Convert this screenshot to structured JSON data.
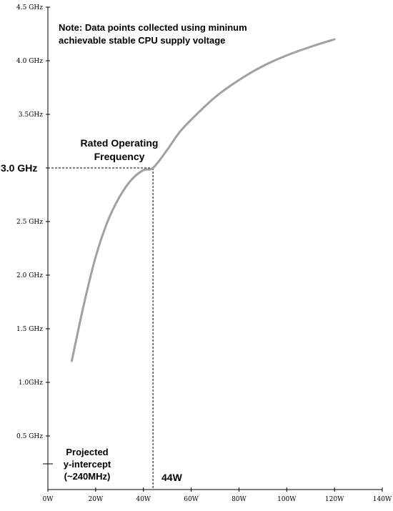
{
  "chart_data": {
    "type": "line",
    "title": "",
    "xlabel": "",
    "ylabel": "",
    "xlim": [
      0,
      140
    ],
    "ylim": [
      0,
      4.5
    ],
    "grid": false,
    "x_ticks": [
      {
        "value": 0,
        "label": "0W"
      },
      {
        "value": 20,
        "label": "20W"
      },
      {
        "value": 40,
        "label": "40W"
      },
      {
        "value": 60,
        "label": "60W"
      },
      {
        "value": 80,
        "label": "80W"
      },
      {
        "value": 100,
        "label": "100W"
      },
      {
        "value": 120,
        "label": "120W"
      },
      {
        "value": 140,
        "label": "140W"
      }
    ],
    "y_ticks": [
      {
        "value": 0.5,
        "label": "0.5 GHz"
      },
      {
        "value": 1.0,
        "label": "1.0GHz"
      },
      {
        "value": 1.5,
        "label": "1.5 GHz"
      },
      {
        "value": 2.0,
        "label": "2.0 GHz"
      },
      {
        "value": 2.5,
        "label": "2.5 GHz"
      },
      {
        "value": 3.5,
        "label": "3.5GHz"
      },
      {
        "value": 4.0,
        "label": "4.0 GHz"
      },
      {
        "value": 4.5,
        "label": "4.5 GHz"
      }
    ],
    "series": [
      {
        "color": "#a0a0a0",
        "x": [
          10,
          15,
          20,
          25,
          30,
          35,
          40,
          44,
          50,
          55,
          60,
          70,
          80,
          90,
          100,
          110,
          120
        ],
        "y": [
          1.2,
          1.72,
          2.17,
          2.5,
          2.73,
          2.89,
          2.98,
          3.0,
          3.17,
          3.33,
          3.45,
          3.66,
          3.82,
          3.95,
          4.05,
          4.13,
          4.2
        ]
      }
    ],
    "annotations": {
      "note": {
        "lines": [
          "Note: Data points collected using mininum",
          "achievable stable CPU supply voltage"
        ]
      },
      "rated_point": {
        "x": 44,
        "y": 3.0,
        "label_lines": [
          "Rated Operating",
          "Frequency"
        ],
        "y_label": "3.0 GHz",
        "x_label": "44W"
      },
      "intercept": {
        "y": 0.24,
        "label_lines": [
          "Projected",
          "y-intercept",
          "(~240MHz)"
        ]
      }
    }
  }
}
